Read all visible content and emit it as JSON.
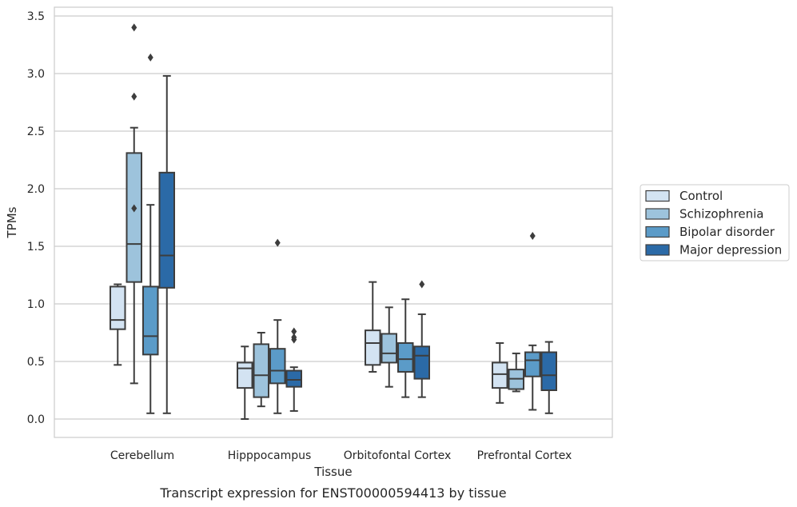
{
  "chart_data": {
    "type": "box",
    "title": "",
    "caption": "Transcript expression for ENST00000594413 by tissue",
    "xlabel": "Tissue",
    "ylabel": "TPMs",
    "ylim": [
      -0.16,
      3.6
    ],
    "yticks": [
      "0.0",
      "0.5",
      "1.0",
      "1.5",
      "2.0",
      "2.5",
      "3.0",
      "3.5"
    ],
    "grid": "horizontal",
    "legend_position": "right",
    "categories": [
      "Cerebellum",
      "Hipppocampus",
      "Orbitofontal Cortex",
      "Prefrontal Cortex"
    ],
    "series": [
      {
        "name": "Control",
        "color": "#d3e3f2",
        "boxes": [
          {
            "whislo": 0.47,
            "q1": 0.78,
            "med": 0.86,
            "q3": 1.15,
            "whishi": 1.17,
            "fliers": []
          },
          {
            "whislo": 0.0,
            "q1": 0.27,
            "med": 0.44,
            "q3": 0.49,
            "whishi": 0.63,
            "fliers": []
          },
          {
            "whislo": 0.41,
            "q1": 0.47,
            "med": 0.66,
            "q3": 0.77,
            "whishi": 1.19,
            "fliers": []
          },
          {
            "whislo": 0.14,
            "q1": 0.27,
            "med": 0.39,
            "q3": 0.49,
            "whishi": 0.66,
            "fliers": []
          }
        ]
      },
      {
        "name": "Schizophrenia",
        "color": "#9dc3dc",
        "boxes": [
          {
            "whislo": 0.31,
            "q1": 1.19,
            "med": 1.52,
            "q3": 2.31,
            "whishi": 2.53,
            "fliers": [
              1.83,
              2.8,
              3.4
            ]
          },
          {
            "whislo": 0.11,
            "q1": 0.19,
            "med": 0.38,
            "q3": 0.65,
            "whishi": 0.75,
            "fliers": []
          },
          {
            "whislo": 0.28,
            "q1": 0.49,
            "med": 0.57,
            "q3": 0.74,
            "whishi": 0.97,
            "fliers": []
          },
          {
            "whislo": 0.24,
            "q1": 0.26,
            "med": 0.35,
            "q3": 0.43,
            "whishi": 0.57,
            "fliers": []
          }
        ]
      },
      {
        "name": "Bipolar disorder",
        "color": "#5b9bc8",
        "boxes": [
          {
            "whislo": 0.05,
            "q1": 0.56,
            "med": 0.72,
            "q3": 1.15,
            "whishi": 1.86,
            "fliers": [
              3.14
            ]
          },
          {
            "whislo": 0.05,
            "q1": 0.31,
            "med": 0.42,
            "q3": 0.61,
            "whishi": 0.86,
            "fliers": [
              1.53
            ]
          },
          {
            "whislo": 0.19,
            "q1": 0.41,
            "med": 0.52,
            "q3": 0.66,
            "whishi": 1.04,
            "fliers": []
          },
          {
            "whislo": 0.08,
            "q1": 0.37,
            "med": 0.51,
            "q3": 0.58,
            "whishi": 0.64,
            "fliers": [
              1.59
            ]
          }
        ]
      },
      {
        "name": "Major depression",
        "color": "#2b6aa7",
        "boxes": [
          {
            "whislo": 0.05,
            "q1": 1.14,
            "med": 1.42,
            "q3": 2.14,
            "whishi": 2.98,
            "fliers": []
          },
          {
            "whislo": 0.07,
            "q1": 0.28,
            "med": 0.34,
            "q3": 0.42,
            "whishi": 0.45,
            "fliers": [
              0.69,
              0.71,
              0.76
            ]
          },
          {
            "whislo": 0.19,
            "q1": 0.35,
            "med": 0.55,
            "q3": 0.63,
            "whishi": 0.91,
            "fliers": [
              1.17
            ]
          },
          {
            "whislo": 0.05,
            "q1": 0.25,
            "med": 0.38,
            "q3": 0.58,
            "whishi": 0.67,
            "fliers": []
          }
        ]
      }
    ]
  }
}
